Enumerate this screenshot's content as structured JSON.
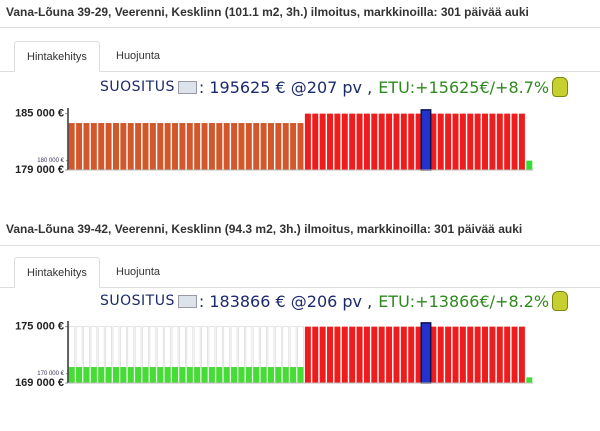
{
  "listings": [
    {
      "title": "Vana-Lõuna 39-29, Veerenni, Kesklinn (101.1 m2, 3h.) ilmoitus, markkinoilla: 301 päivää auki",
      "tabs": [
        "Hintakehitys",
        "Huojunta"
      ],
      "recommendation": {
        "label": "SUOSITUS",
        "price": ": 195625 € @207 pv ,",
        "gain": "ETU:+15625€/+8.7%"
      },
      "chart": {
        "type": "bar",
        "ylim": [
          179000,
          185600
        ],
        "yticks": [
          {
            "value": 185000,
            "label": "185 000 €"
          },
          {
            "value": 179000,
            "label": "179 000 €"
          }
        ],
        "reference_tick": {
          "value": 180000,
          "label": "180 000 €"
        },
        "series": [
          {
            "color": "#d2582c",
            "values": [
              184000,
              184000,
              184000,
              184000,
              184000,
              184000,
              184000,
              184000,
              184000,
              184000,
              184000,
              184000,
              184000,
              184000,
              184000,
              184000,
              184000,
              184000,
              184000,
              184000,
              184000,
              184000,
              184000,
              184000,
              184000,
              184000,
              184000,
              184000,
              184000,
              184000,
              184000,
              184000,
              null,
              null,
              null,
              null,
              null,
              null,
              null,
              null,
              null,
              null,
              null,
              null,
              null,
              null,
              null,
              null,
              null,
              null,
              null,
              null,
              null,
              null,
              null,
              null,
              null,
              null,
              null,
              null,
              null,
              null,
              null
            ]
          },
          {
            "color": "#ee1c1c",
            "values": [
              null,
              null,
              null,
              null,
              null,
              null,
              null,
              null,
              null,
              null,
              null,
              null,
              null,
              null,
              null,
              null,
              null,
              null,
              null,
              null,
              null,
              null,
              null,
              null,
              null,
              null,
              null,
              null,
              null,
              null,
              null,
              null,
              185000,
              185000,
              185000,
              185000,
              185000,
              185000,
              185000,
              185000,
              185000,
              185000,
              185000,
              185000,
              185000,
              185000,
              185000,
              185000,
              null,
              185000,
              185000,
              185000,
              185000,
              185000,
              185000,
              185000,
              185000,
              185000,
              185000,
              185000,
              185000,
              185000,
              null
            ]
          },
          {
            "color": "#2233cc",
            "values": [
              null,
              null,
              null,
              null,
              null,
              null,
              null,
              null,
              null,
              null,
              null,
              null,
              null,
              null,
              null,
              null,
              null,
              null,
              null,
              null,
              null,
              null,
              null,
              null,
              null,
              null,
              null,
              null,
              null,
              null,
              null,
              null,
              null,
              null,
              null,
              null,
              null,
              null,
              null,
              null,
              null,
              null,
              null,
              null,
              null,
              null,
              null,
              null,
              185400,
              null,
              null,
              null,
              null,
              null,
              null,
              null,
              null,
              null,
              null,
              null,
              null,
              null,
              null
            ]
          },
          {
            "color": "#33dd33",
            "values": [
              null,
              null,
              null,
              null,
              null,
              null,
              null,
              null,
              null,
              null,
              null,
              null,
              null,
              null,
              null,
              null,
              null,
              null,
              null,
              null,
              null,
              null,
              null,
              null,
              null,
              null,
              null,
              null,
              null,
              null,
              null,
              null,
              null,
              null,
              null,
              null,
              null,
              null,
              null,
              null,
              null,
              null,
              null,
              null,
              null,
              null,
              null,
              null,
              null,
              null,
              null,
              null,
              null,
              null,
              null,
              null,
              null,
              null,
              null,
              null,
              null,
              null,
              180000
            ]
          }
        ]
      }
    },
    {
      "title": "Vana-Lõuna 39-42, Veerenni, Kesklinn (94.3 m2, 3h.) ilmoitus, markkinoilla: 301 päivää auki",
      "tabs": [
        "Hintakehitys",
        "Huojunta"
      ],
      "recommendation": {
        "label": "SUOSITUS",
        "price": ": 183866 € @206 pv ,",
        "gain": "ETU:+13866€/+8.2%"
      },
      "chart": {
        "type": "bar",
        "ylim": [
          169000,
          175600
        ],
        "yticks": [
          {
            "value": 175000,
            "label": "175 000 €"
          },
          {
            "value": 169000,
            "label": "169 000 €"
          }
        ],
        "reference_tick": {
          "value": 170000,
          "label": "170 000 €"
        },
        "series": [
          {
            "color": "#ffffff",
            "values": [
              175000,
              175000,
              175000,
              175000,
              175000,
              175000,
              175000,
              175000,
              175000,
              175000,
              175000,
              175000,
              175000,
              175000,
              175000,
              175000,
              175000,
              175000,
              175000,
              175000,
              175000,
              175000,
              175000,
              175000,
              175000,
              175000,
              175000,
              175000,
              175000,
              175000,
              175000,
              175000,
              null,
              null,
              null,
              null,
              null,
              null,
              null,
              null,
              null,
              null,
              null,
              null,
              null,
              null,
              null,
              null,
              null,
              null,
              null,
              null,
              null,
              null,
              null,
              null,
              null,
              null,
              null,
              null,
              null,
              null,
              null
            ]
          },
          {
            "color": "#44dd33",
            "values": [
              170700,
              170700,
              170700,
              170700,
              170700,
              170700,
              170700,
              170700,
              170700,
              170700,
              170700,
              170700,
              170700,
              170700,
              170700,
              170700,
              170700,
              170700,
              170700,
              170700,
              170700,
              170700,
              170700,
              170700,
              170700,
              170700,
              170700,
              170700,
              170700,
              170700,
              170700,
              170700,
              null,
              null,
              null,
              null,
              null,
              null,
              null,
              null,
              null,
              null,
              null,
              null,
              null,
              null,
              null,
              null,
              null,
              null,
              null,
              null,
              null,
              null,
              null,
              null,
              null,
              null,
              null,
              null,
              null,
              null,
              169600
            ]
          },
          {
            "color": "#ee1c1c",
            "values": [
              null,
              null,
              null,
              null,
              null,
              null,
              null,
              null,
              null,
              null,
              null,
              null,
              null,
              null,
              null,
              null,
              null,
              null,
              null,
              null,
              null,
              null,
              null,
              null,
              null,
              null,
              null,
              null,
              null,
              null,
              null,
              null,
              175000,
              175000,
              175000,
              175000,
              175000,
              175000,
              175000,
              175000,
              175000,
              175000,
              175000,
              175000,
              175000,
              175000,
              175000,
              175000,
              null,
              175000,
              175000,
              175000,
              175000,
              175000,
              175000,
              175000,
              175000,
              175000,
              175000,
              175000,
              175000,
              175000,
              null
            ]
          },
          {
            "color": "#2233cc",
            "values": [
              null,
              null,
              null,
              null,
              null,
              null,
              null,
              null,
              null,
              null,
              null,
              null,
              null,
              null,
              null,
              null,
              null,
              null,
              null,
              null,
              null,
              null,
              null,
              null,
              null,
              null,
              null,
              null,
              null,
              null,
              null,
              null,
              null,
              null,
              null,
              null,
              null,
              null,
              null,
              null,
              null,
              null,
              null,
              null,
              null,
              null,
              null,
              null,
              175400,
              null,
              null,
              null,
              null,
              null,
              null,
              null,
              null,
              null,
              null,
              null,
              null,
              null,
              null
            ]
          }
        ]
      }
    }
  ]
}
